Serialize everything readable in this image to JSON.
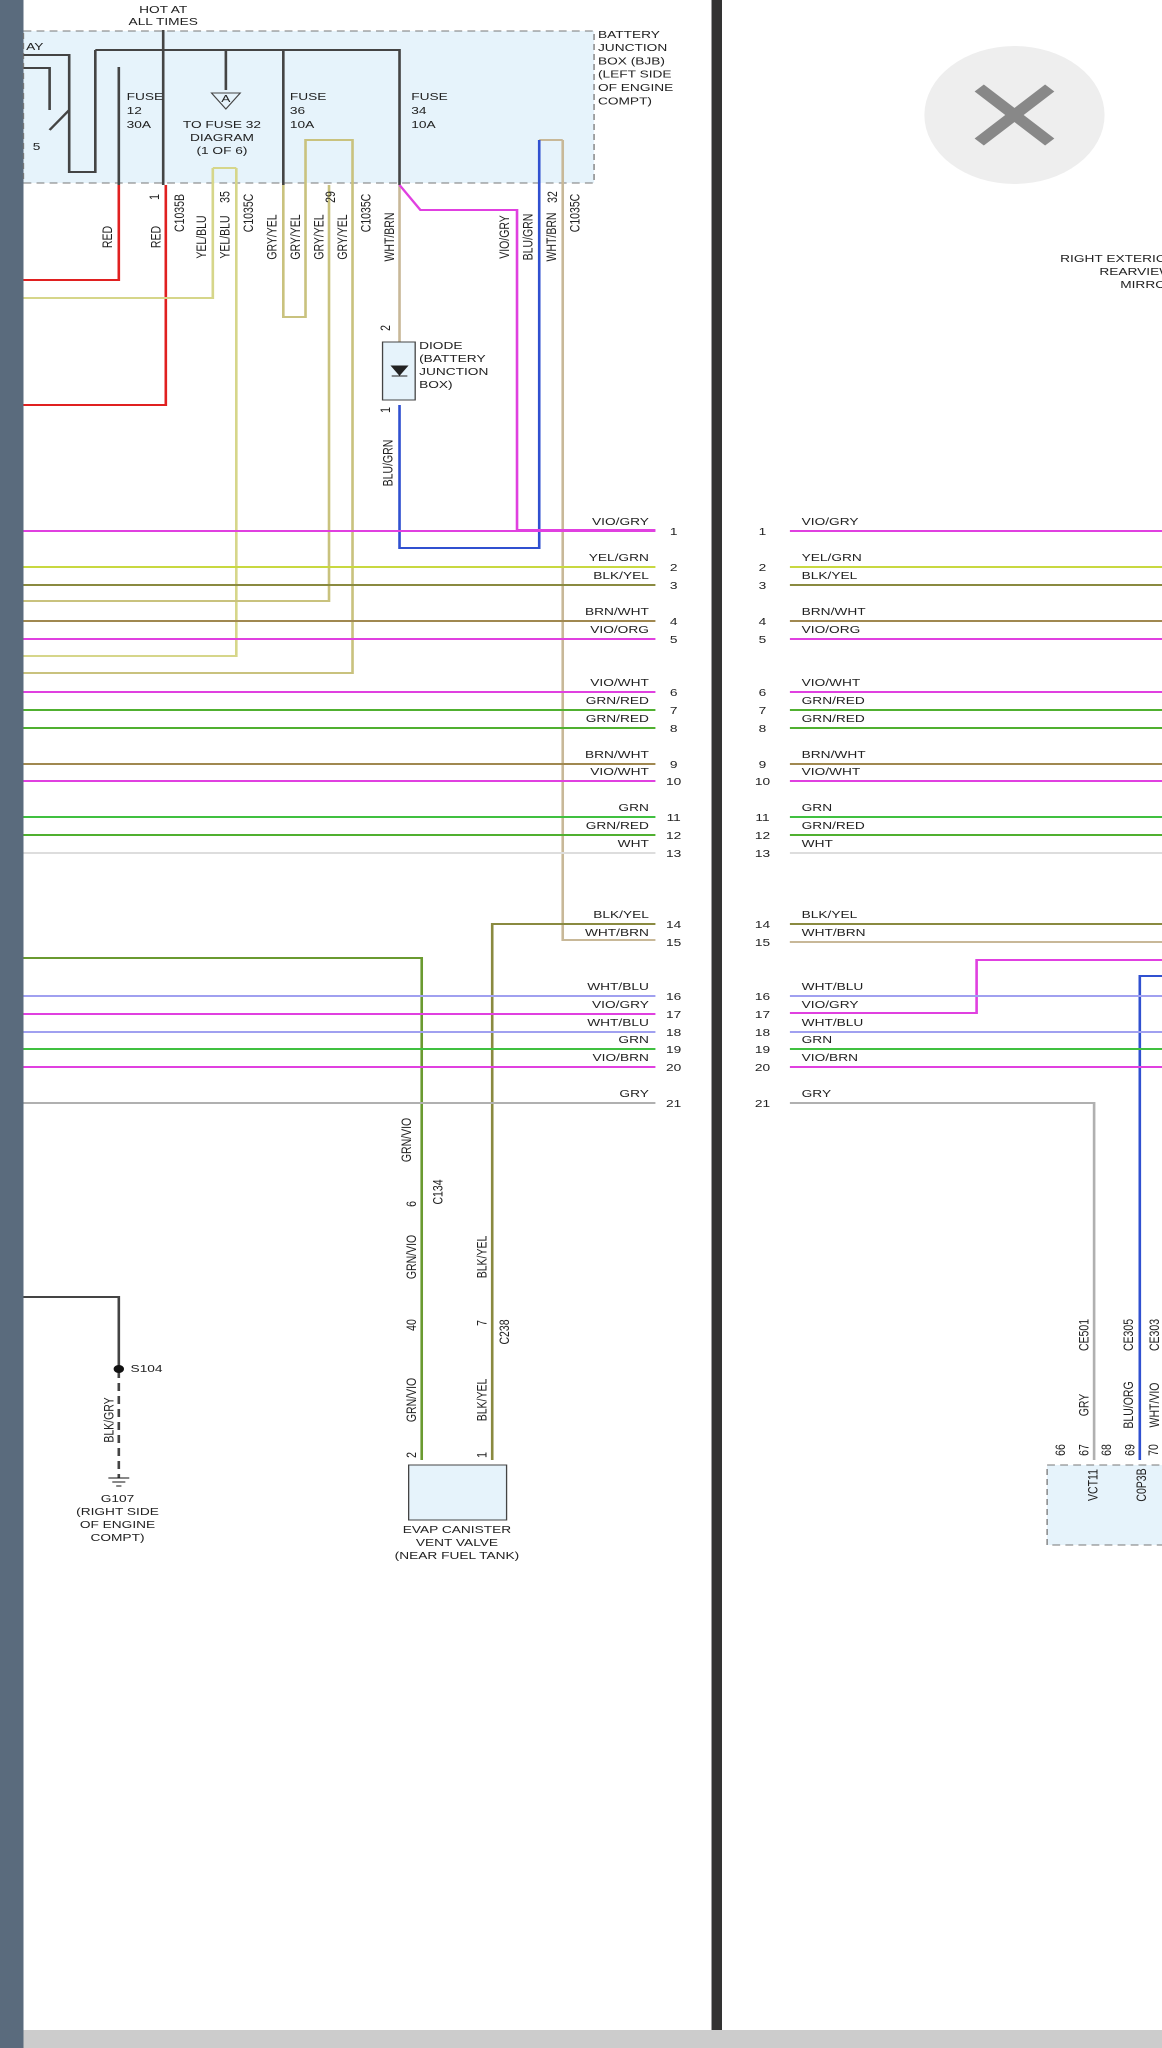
{
  "left_header": {
    "hot": [
      "HOT AT",
      "ALL TIMES"
    ],
    "relay_cut": "AY",
    "relay_pin": "5",
    "bjb": [
      "BATTERY",
      "JUNCTION",
      "BOX (BJB)",
      "(LEFT SIDE",
      "OF ENGINE",
      "COMPT)"
    ],
    "fuses": [
      [
        "FUSE",
        "12",
        "30A"
      ],
      [
        "FUSE",
        "36",
        "10A"
      ],
      [
        "FUSE",
        "34",
        "10A"
      ]
    ],
    "fuse32": {
      "symbol": "A",
      "lines": [
        "TO FUSE 32",
        "DIAGRAM",
        "(1 OF 6)"
      ]
    }
  },
  "connectors": [
    {
      "pin": "1",
      "name": "C1035B"
    },
    {
      "pin": "35",
      "name": "C1035C"
    },
    {
      "pin": "29",
      "name": "C1035C"
    },
    {
      "pin": "32",
      "name": "C1035C"
    }
  ],
  "vertical_wires": [
    "RED",
    "RED",
    "YEL/BLU",
    "YEL/BLU",
    "GRY/YEL",
    "GRY/YEL",
    "GRY/YEL",
    "GRY/YEL",
    "WHT/BRN",
    "VIO/GRY",
    "BLU/GRN",
    "WHT/BRN"
  ],
  "diode": {
    "pin_top": "2",
    "pin_bottom": "1",
    "lines": [
      "DIODE",
      "(BATTERY",
      "JUNCTION",
      "BOX)"
    ],
    "wire": "BLU/GRN"
  },
  "rows": [
    {
      "pin": "1",
      "wire": "VIO/GRY"
    },
    {
      "pin": "2",
      "wire": "YEL/GRN"
    },
    {
      "pin": "3",
      "wire": "BLK/YEL"
    },
    {
      "pin": "4",
      "wire": "BRN/WHT"
    },
    {
      "pin": "5",
      "wire": "VIO/ORG"
    },
    {
      "pin": "6",
      "wire": "VIO/WHT"
    },
    {
      "pin": "7",
      "wire": "GRN/RED"
    },
    {
      "pin": "8",
      "wire": "GRN/RED"
    },
    {
      "pin": "9",
      "wire": "BRN/WHT"
    },
    {
      "pin": "10",
      "wire": "VIO/WHT"
    },
    {
      "pin": "11",
      "wire": "GRN"
    },
    {
      "pin": "12",
      "wire": "GRN/RED"
    },
    {
      "pin": "13",
      "wire": "WHT"
    },
    {
      "pin": "14",
      "wire": "BLK/YEL"
    },
    {
      "pin": "15",
      "wire": "WHT/BRN"
    },
    {
      "pin": "16",
      "wire": "WHT/BLU"
    },
    {
      "pin": "17",
      "wire": "VIO/GRY"
    },
    {
      "pin": "18",
      "wire": "WHT/BLU"
    },
    {
      "pin": "19",
      "wire": "GRN"
    },
    {
      "pin": "20",
      "wire": "VIO/BRN"
    },
    {
      "pin": "21",
      "wire": "GRY"
    }
  ],
  "evap": {
    "wire_a": [
      "GRN/VIO",
      "GRN/VIO",
      "GRN/VIO"
    ],
    "c134": {
      "pin": "6",
      "name": "C134"
    },
    "c238": {
      "pins": [
        "40",
        "7"
      ],
      "name": "C238"
    },
    "wire_b": [
      "BLK/YEL",
      "BLK/YEL"
    ],
    "pins": [
      "2",
      "1"
    ],
    "lines": [
      "EVAP CANISTER",
      "VENT VALVE",
      "(NEAR FUEL TANK)"
    ]
  },
  "ground": {
    "splice": "S104",
    "wire": "BLK/GRY",
    "name": "G107",
    "lines": [
      "(RIGHT SIDE",
      "OF ENGINE",
      "COMPT)"
    ]
  },
  "right": {
    "mirror": [
      "RIGHT EXTERIOR",
      "REARVIEW",
      "MIRRO"
    ],
    "wires": [
      {
        "circuit": "CE501",
        "color": "GRY"
      },
      {
        "circuit": "CE305",
        "color": "BLU/ORG"
      },
      {
        "circuit": "CE303",
        "color": "WHT/VIO"
      }
    ],
    "pins": [
      "66",
      "67",
      "68",
      "69",
      "70"
    ],
    "connectors": [
      "VCT11",
      "C0P3B"
    ]
  }
}
